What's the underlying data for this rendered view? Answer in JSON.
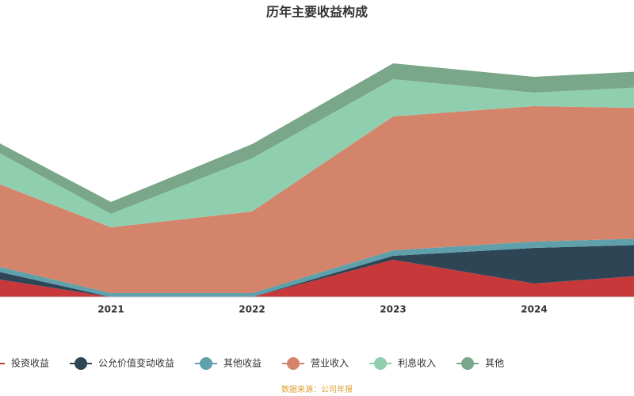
{
  "chart_data": {
    "type": "stacked-area",
    "title": "历年主要收益构成",
    "categories": [
      null,
      "2021",
      "2022",
      "2023",
      "2024",
      null
    ],
    "ylim": [
      0,
      300
    ],
    "series": [
      {
        "name": "投资收益",
        "color": "#c8383a",
        "values": [
          28,
          0,
          0,
          47,
          17,
          30
        ]
      },
      {
        "name": "公允价值变动收益",
        "color": "#2e4556",
        "values": [
          12,
          0,
          0,
          5,
          45,
          37
        ]
      },
      {
        "name": "其他收益",
        "color": "#5fa0ab",
        "values": [
          7,
          5,
          5,
          7,
          8,
          8
        ]
      },
      {
        "name": "营业收入",
        "color": "#d4846a",
        "values": [
          110,
          83,
          103,
          169,
          171,
          163
        ]
      },
      {
        "name": "利息收入",
        "color": "#8fcfb0",
        "values": [
          45,
          17,
          67,
          47,
          17,
          29
        ]
      },
      {
        "name": "其他",
        "color": "#7aa78a",
        "values": [
          12,
          15,
          18,
          20,
          20,
          20
        ]
      }
    ],
    "source": "数据来源：公司年报"
  }
}
